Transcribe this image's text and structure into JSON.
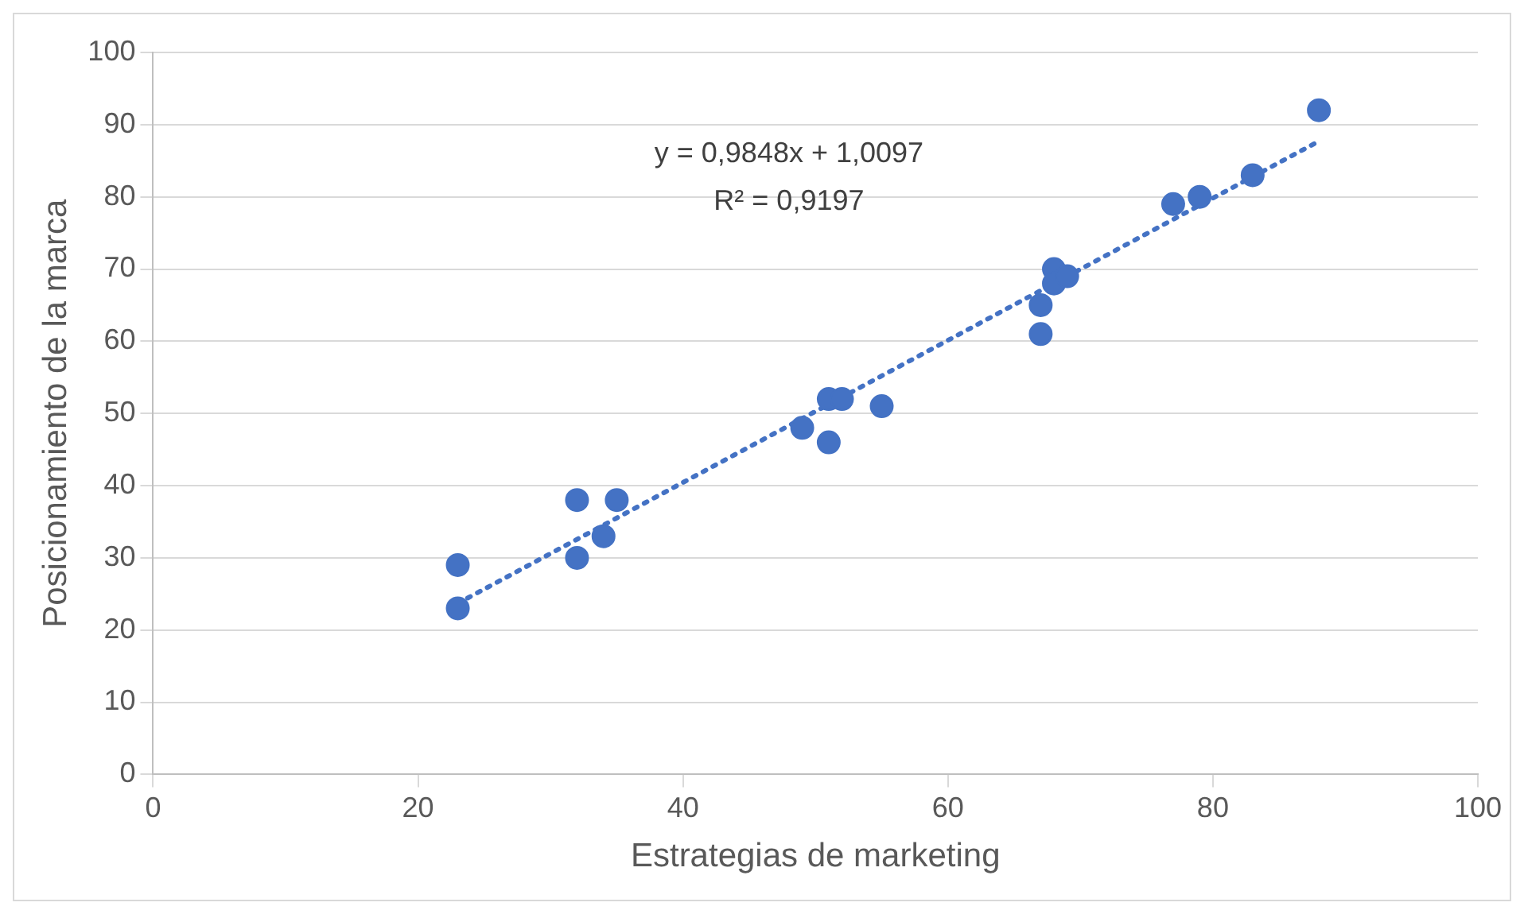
{
  "chart_data": {
    "type": "scatter",
    "xlabel": "Estrategias de marketing",
    "ylabel": "Posicionamiento de la marca",
    "series": [
      {
        "type": "scatter",
        "color": "#4472c4",
        "marker": "circle",
        "x": [
          23,
          23,
          32,
          32,
          34,
          35,
          49,
          51,
          52,
          51,
          55,
          67,
          67,
          68,
          68,
          69,
          77,
          79,
          83,
          88
        ],
        "values": [
          29,
          23,
          38,
          30,
          33,
          38,
          48,
          52,
          52,
          46,
          51,
          65,
          61,
          70,
          68,
          69,
          79,
          80,
          83,
          92
        ]
      },
      {
        "type": "line",
        "color": "#4472c4",
        "line_style": "dotted",
        "marker": "none",
        "x": [
          23,
          88
        ],
        "values": [
          23.7,
          87.7
        ]
      }
    ],
    "xlim": [
      0,
      100
    ],
    "xticks": [
      0,
      20,
      40,
      60,
      80,
      100
    ],
    "ylim": [
      0,
      100
    ],
    "yticks": [
      0,
      10,
      20,
      30,
      40,
      50,
      60,
      70,
      80,
      90,
      100
    ],
    "grid": "y",
    "legend": false,
    "annotations": [
      "y = 0,9848x + 1,0097",
      "R² = 0,9197"
    ]
  }
}
